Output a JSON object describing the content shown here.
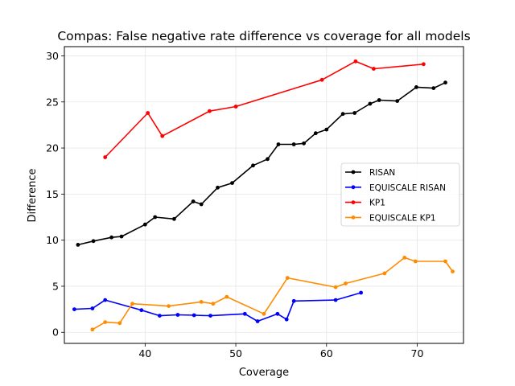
{
  "chart_data": {
    "type": "line",
    "title": "Compas: False negative rate difference vs coverage for all models",
    "xlabel": "Coverage",
    "ylabel": "Difference",
    "xlim": [
      31.1,
      75.1
    ],
    "ylim": [
      -1.2,
      31.0
    ],
    "xticks": [
      30,
      40,
      50,
      60,
      70
    ],
    "yticks": [
      0,
      5,
      10,
      15,
      20,
      25,
      30
    ],
    "grid": true,
    "legend_position": "center-right",
    "series": [
      {
        "name": "RISAN",
        "color": "#000000",
        "x": [
          32.6,
          34.3,
          36.3,
          37.4,
          40.0,
          41.1,
          43.2,
          45.3,
          46.2,
          48.0,
          49.6,
          51.9,
          53.5,
          54.7,
          56.4,
          57.5,
          58.8,
          60.0,
          61.8,
          63.1,
          64.8,
          65.8,
          67.8,
          69.9,
          71.8,
          73.1
        ],
        "y": [
          9.5,
          9.9,
          10.3,
          10.4,
          11.7,
          12.5,
          12.3,
          14.2,
          13.9,
          15.7,
          16.2,
          18.1,
          18.8,
          20.4,
          20.4,
          20.5,
          21.6,
          22.0,
          23.7,
          23.8,
          24.8,
          25.2,
          25.1,
          26.6,
          26.5,
          27.1
        ]
      },
      {
        "name": "EQUISCALE RISAN",
        "color": "#0000ff",
        "x": [
          32.2,
          34.2,
          35.6,
          39.6,
          41.6,
          43.6,
          45.4,
          47.2,
          51.0,
          52.4,
          54.6,
          55.6,
          56.4,
          61.0,
          63.8
        ],
        "y": [
          2.5,
          2.6,
          3.5,
          2.4,
          1.8,
          1.9,
          1.85,
          1.8,
          2.0,
          1.2,
          2.0,
          1.4,
          3.4,
          3.5,
          4.3
        ]
      },
      {
        "name": "KP1",
        "color": "#ff0000",
        "x": [
          35.6,
          40.3,
          41.9,
          47.1,
          50.0,
          59.5,
          63.2,
          65.2,
          70.7
        ],
        "y": [
          19.0,
          23.8,
          21.3,
          24.0,
          24.5,
          27.4,
          29.4,
          28.6,
          29.1
        ]
      },
      {
        "name": "EQUISCALE KP1",
        "color": "#ff8c00",
        "x": [
          34.2,
          35.6,
          37.2,
          38.6,
          42.6,
          46.2,
          47.5,
          49.0,
          53.1,
          55.7,
          61.0,
          62.1,
          66.4,
          68.6,
          69.8,
          73.1,
          73.9
        ],
        "y": [
          0.3,
          1.1,
          1.0,
          3.1,
          2.85,
          3.3,
          3.1,
          3.85,
          2.0,
          5.9,
          4.9,
          5.3,
          6.4,
          8.1,
          7.7,
          7.7,
          6.6
        ]
      }
    ]
  }
}
